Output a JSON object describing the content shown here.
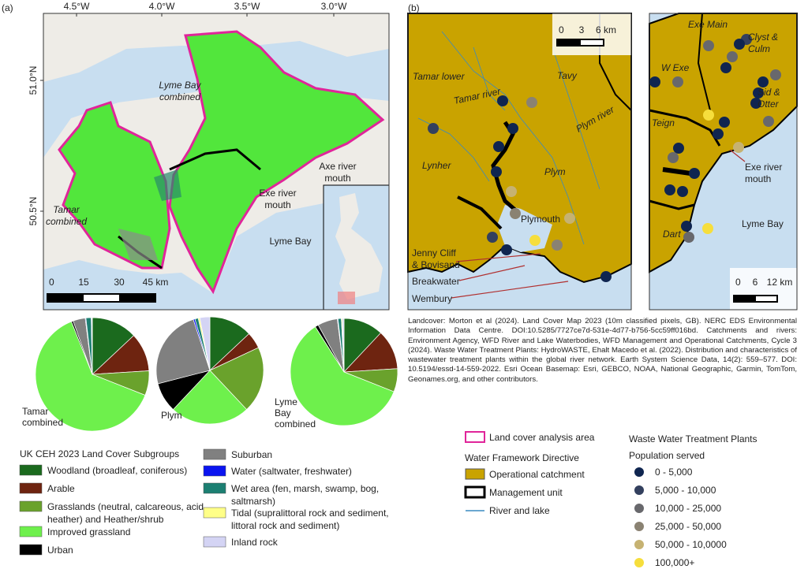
{
  "panel_a": {
    "label": "(a)",
    "lon_ticks": [
      "4.5°W",
      "4.0°W",
      "3.5°W",
      "3.0°W"
    ],
    "lat_ticks": [
      "51.0°N",
      "50.5°N"
    ],
    "labels": {
      "lyme_bay_combined": [
        "Lyme Bay",
        "combined"
      ],
      "tamar_combined": [
        "Tamar",
        "combined"
      ],
      "exe_mouth": [
        "Exe river",
        "mouth"
      ],
      "axe_mouth": [
        "Axe river",
        "mouth"
      ],
      "lyme_bay": "Lyme Bay"
    },
    "scale": [
      "0",
      "15",
      "30",
      "45 km"
    ]
  },
  "land_cover_legend": {
    "title": "UK CEH 2023 Land Cover Subgroups",
    "items": [
      {
        "lines": [
          "Woodland (broadleaf,  coniferous)"
        ],
        "color": "#1b6a1e"
      },
      {
        "lines": [
          "Arable"
        ],
        "color": "#6e2410"
      },
      {
        "lines": [
          "Grasslands (neutral, calcareous, acid,",
          "heather) and Heather/shrub"
        ],
        "color": "#6aa22c"
      },
      {
        "lines": [
          "Improved grassland"
        ],
        "color": "#6ef04c"
      },
      {
        "lines": [
          "Urban"
        ],
        "color": "#000000"
      },
      {
        "lines": [
          "Suburban"
        ],
        "color": "#808080"
      },
      {
        "lines": [
          "Water (saltwater, freshwater)"
        ],
        "color": "#0a14f0"
      },
      {
        "lines": [
          "Wet area (fen, marsh, swamp, bog,",
          "saltmarsh)"
        ],
        "color": "#1c7f72"
      },
      {
        "lines": [
          "Tidal (supralittoral rock and sediment,",
          "littoral rock and sediment)"
        ],
        "color": "#ffff88"
      },
      {
        "lines": [
          "Inland rock"
        ],
        "color": "#d4d4f4"
      }
    ]
  },
  "pies": [
    {
      "name": [
        "Tamar",
        "combined"
      ],
      "values": [
        13,
        11,
        7,
        63,
        0.5,
        3.5,
        0.2,
        1.5,
        0.1,
        0.2
      ]
    },
    {
      "name": [
        "Plym"
      ],
      "values": [
        13,
        5,
        20,
        24,
        9,
        24,
        0.5,
        1,
        0.5,
        3
      ]
    },
    {
      "name": [
        "Lyme",
        "Bay",
        "combined"
      ],
      "values": [
        12,
        12,
        7,
        60,
        1,
        6,
        0.2,
        1,
        0.3,
        0.5
      ]
    }
  ],
  "panel_b": {
    "label": "(b)",
    "left_map": {
      "scale": [
        "0",
        "3",
        "6 km"
      ],
      "labels": {
        "tamar_lower": "Tamar lower",
        "tavy": "Tavy",
        "tamar_river": "Tamar river",
        "lynher": "Lynher",
        "plym": "Plym",
        "plym_river": "Plym river",
        "plymouth": "Plymouth",
        "jenny_cliff": [
          "Jenny Cliff",
          "& Bovisand"
        ],
        "breakwater": "Breakwater",
        "wembury": "Wembury"
      }
    },
    "right_map": {
      "scale": [
        "0",
        "6",
        "12 km"
      ],
      "labels": {
        "exe_main": "Exe Main",
        "clyst_culm": [
          "Clyst &",
          "Culm"
        ],
        "w_exe": "W Exe",
        "sid_otter": [
          "Sid &",
          "Otter"
        ],
        "teign": "Teign",
        "exe_mouth": [
          "Exe river",
          "mouth"
        ],
        "dart": "Dart",
        "lyme_bay": "Lyme Bay"
      }
    }
  },
  "citation": "Landcover: Morton et al (2024). Land Cover Map 2023 (10m classified pixels, GB). NERC EDS Environmental Information Data Centre. DOI:10.5285/7727ce7d-531e-4d77-b756-5cc59ff016bd. Catchments and rivers: Environment Agency, WFD River and Lake Waterbodies, WFD Management and Operational Catchments, Cycle 3 (2024). Waste Water Treatment Plants: HydroWASTE, Ehalt Macedo et al. (2022). Distribution and characteristics of wastewater treatment plants within the global river network. Earth System Science Data, 14(2): 559–577. DOI: 10.5194/essd-14-559-2022. Esri Ocean Basemap: Esri, GEBCO, NOAA, National Geographic, Garmin, TomTom, Geonames.org, and other contributors.",
  "wfd_legend": {
    "analysis_area": "Land cover analysis area",
    "title": "Water Framework Directive",
    "items": [
      "Operational catchment",
      "Management unit",
      "River and lake"
    ]
  },
  "wwtp_legend": {
    "title": "Waste Water Treatment Plants",
    "subtitle": "Population served",
    "classes": [
      {
        "label": "0 - 5,000",
        "color": "#0f2550"
      },
      {
        "label": "5,000 - 10,000",
        "color": "#33405e"
      },
      {
        "label": "10,000 - 25,000",
        "color": "#68686c"
      },
      {
        "label": "25,000 - 50,000",
        "color": "#8a8272"
      },
      {
        "label": "50,000 - 10,0000",
        "color": "#c6b272"
      },
      {
        "label": "100,000+",
        "color": "#f6de3c"
      }
    ]
  }
}
